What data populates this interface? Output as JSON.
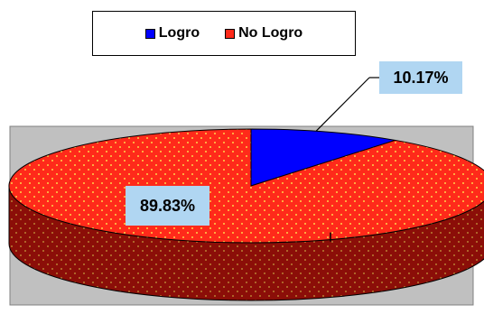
{
  "chart_data": {
    "type": "pie",
    "style": "3d",
    "title": "",
    "categories": [
      "Logro",
      "No Logro"
    ],
    "values": [
      10.17,
      89.83
    ],
    "data_labels": [
      "10.17%",
      "89.83%"
    ],
    "colors": [
      "#0000ff",
      "#ff2a1a"
    ],
    "side_color": "#8b0e08",
    "pattern": "dotted",
    "legend_position": "top"
  },
  "legend": {
    "items": [
      {
        "label": "Logro",
        "color": "#0000ff"
      },
      {
        "label": "No Logro",
        "color": "#ff2a1a"
      }
    ]
  }
}
